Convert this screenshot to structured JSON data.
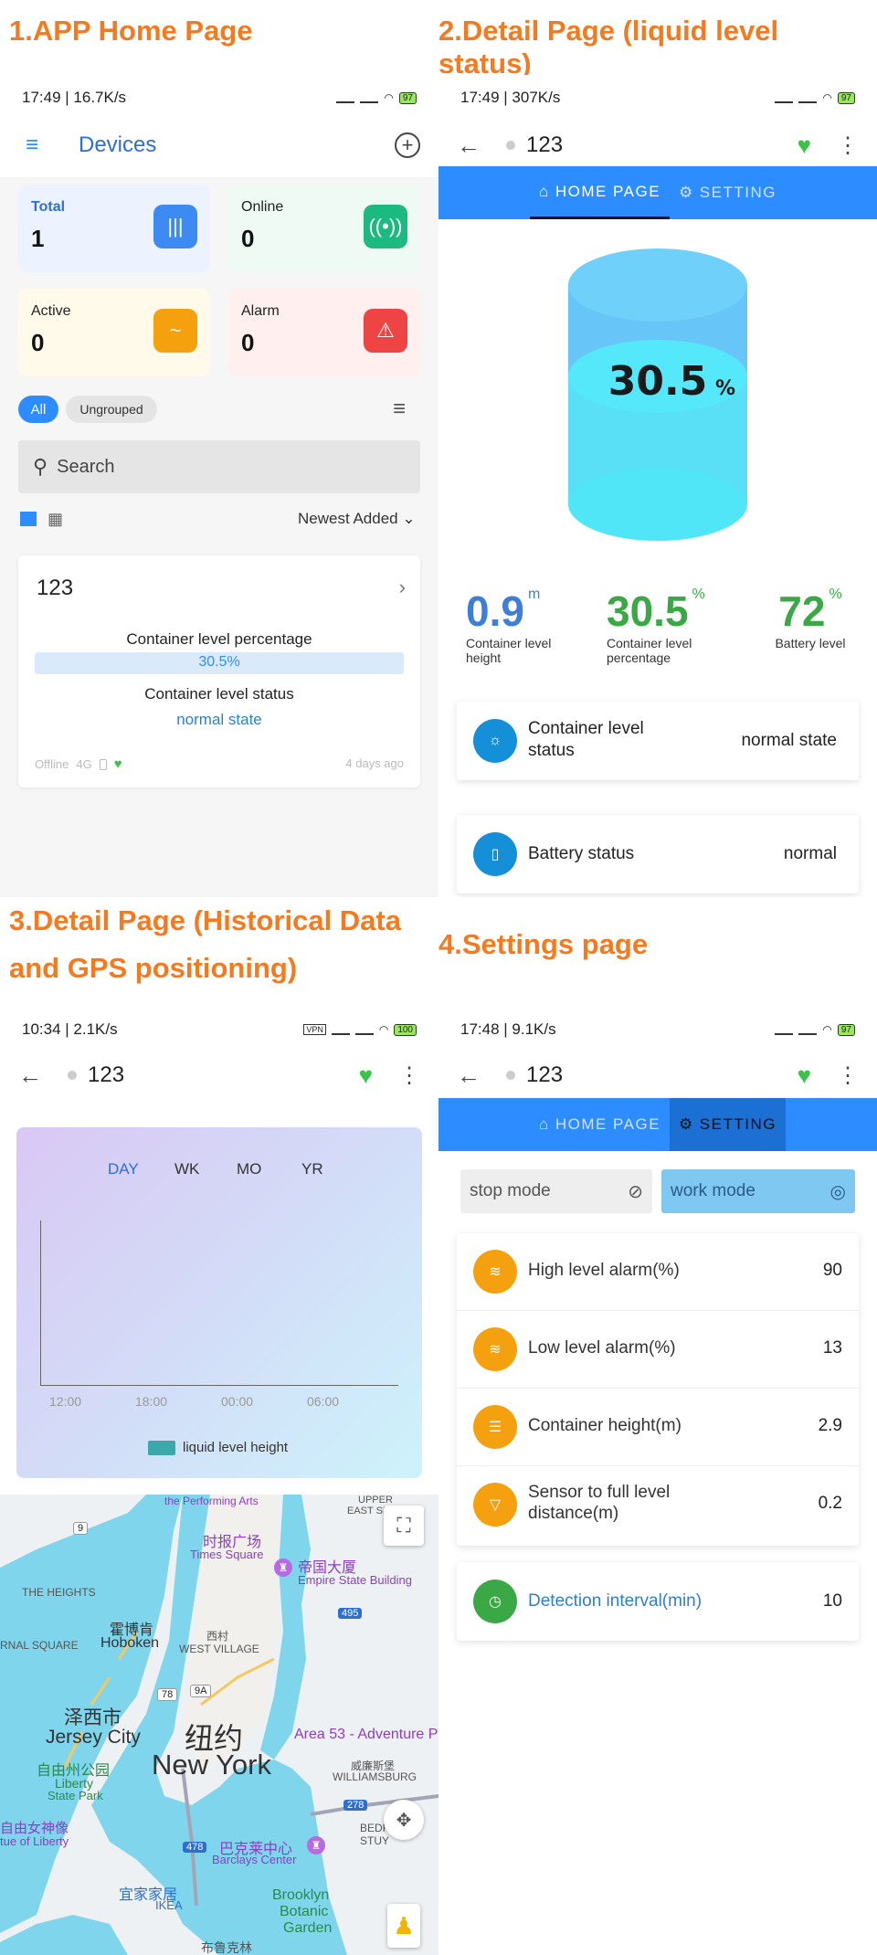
{
  "headers": {
    "h1": "1.APP Home Page",
    "h2": "2.Detail Page (liquid level status)",
    "h3_line1": "3.Detail Page (Historical Data",
    "h3_line2": "and GPS positioning)",
    "h4": "4.Settings page"
  },
  "p1": {
    "status_time": "17:49 | 16.7K/s",
    "battery": "97",
    "title": "Devices",
    "stats": [
      {
        "label": "Total",
        "value": "1",
        "color": "#3d8bf2",
        "bg": "#eef4fe"
      },
      {
        "label": "Online",
        "value": "0",
        "color": "#1cb980",
        "bg": "#eefaf4"
      },
      {
        "label": "Active",
        "value": "0",
        "color": "#f5a10f",
        "bg": "#fffaeb"
      },
      {
        "label": "Alarm",
        "value": "0",
        "color": "#ef4444",
        "bg": "#fff1f0"
      }
    ],
    "filters": {
      "all": "All",
      "ungrouped": "Ungrouped"
    },
    "search_placeholder": "Search",
    "sort": "Newest Added",
    "device": {
      "name": "123",
      "level_label": "Container level percentage",
      "level_value": "30.5%",
      "level_fraction": 0.305,
      "status_label": "Container level status",
      "status_value": "normal state",
      "offline": "Offline",
      "network": "4G",
      "time": "4 days ago"
    }
  },
  "p2": {
    "status_time": "17:49 | 307K/s",
    "battery": "97",
    "device_name": "123",
    "tab_home": "HOME PAGE",
    "tab_setting": "SETTING",
    "tank_value": "30.5",
    "tank_unit": "%",
    "metrics": [
      {
        "value": "0.9",
        "unit": "m",
        "label": "Container level height",
        "color": "#3d7fd6"
      },
      {
        "value": "30.5",
        "unit": "%",
        "label": "Container level percentage",
        "color": "#3aa845"
      },
      {
        "value": "72",
        "unit": "%",
        "label": "Battery level",
        "color": "#3aa845"
      }
    ],
    "rows": [
      {
        "label": "Container level status",
        "value": "normal state"
      },
      {
        "label": "Battery status",
        "value": "normal"
      }
    ]
  },
  "p3": {
    "status_time": "10:34 | 2.1K/s",
    "battery": "100",
    "device_name": "123",
    "ranges": [
      "DAY",
      "WK",
      "MO",
      "YR"
    ],
    "x_ticks": [
      "12:00",
      "18:00",
      "00:00",
      "06:00"
    ],
    "legend": "liquid level height",
    "map_labels": {
      "performing": "the Performing Arts",
      "upper": "UPPER",
      "eastside": "EAST SIDE",
      "times_cn": "时报广场",
      "times": "Times Square",
      "empire_cn": "帝国大厦",
      "empire": "Empire State Building",
      "heights": "THE HEIGHTS",
      "hoboken_cn": "霍博肯",
      "hoboken": "Hoboken",
      "westvillage_cn": "西村",
      "westvillage": "WEST VILLAGE",
      "square": "RNAL SQUARE",
      "jc_cn": "泽西市",
      "jc": "Jersey City",
      "ny_cn": "纽约",
      "ny": "New York",
      "area53": "Area 53 - Adventure P",
      "williamsburg_cn": "威廉斯堡",
      "williamsburg": "WILLIAMSBURG",
      "libertypark_cn": "自由州公园",
      "libertypark": "Liberty",
      "statepark": "State Park",
      "statue_cn": "自由女神像",
      "statue": "tue of Liberty",
      "barclays_cn": "巴克莱中心",
      "barclays": "Barclays Center",
      "bedford": "BEDFORD-STUY",
      "ikea_cn": "宜家家居",
      "ikea": "IKEA",
      "brooklyn": "Brooklyn",
      "botanic": "Botanic",
      "garden": "Garden",
      "bottom_cn": "布鲁克林",
      "road9": "9",
      "road78": "78",
      "road9a": "9A",
      "road278": "278",
      "road478": "478",
      "road495": "495"
    }
  },
  "p4": {
    "status_time": "17:48 | 9.1K/s",
    "battery": "97",
    "device_name": "123",
    "tab_home": "HOME PAGE",
    "tab_setting": "SETTING",
    "stop_mode": "stop mode",
    "work_mode": "work mode",
    "settings": [
      {
        "label": "High level alarm(%)",
        "value": "90"
      },
      {
        "label": "Low level alarm(%)",
        "value": "13"
      },
      {
        "label": "Container height(m)",
        "value": "2.9"
      },
      {
        "label": "Sensor to full level distance(m)",
        "value": "0.2"
      }
    ],
    "interval_label": "Detection interval(min)",
    "interval_value": "10"
  }
}
